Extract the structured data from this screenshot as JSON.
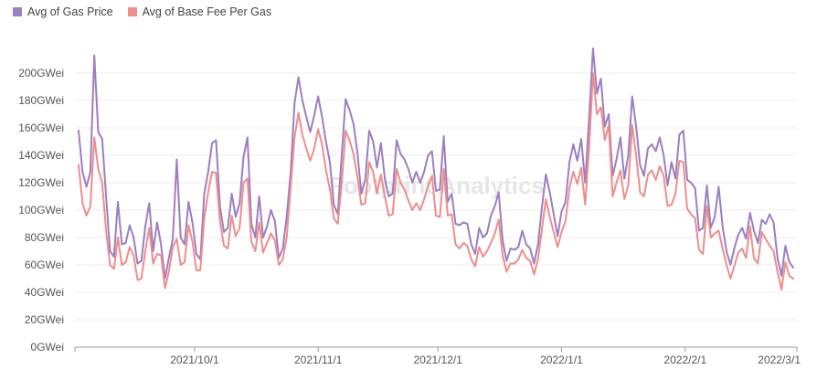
{
  "legend": {
    "gas": "Avg of Gas Price",
    "base": "Avg of Base Fee Per Gas"
  },
  "watermark": "Footprint Analytics",
  "colors": {
    "gas": "#9c7fc0",
    "base": "#ee8d8d",
    "grid": "#ececec",
    "axis": "#999999"
  },
  "chart_data": {
    "type": "line",
    "title": "",
    "xlabel": "",
    "ylabel": "",
    "grid": true,
    "legend_position": "top-left",
    "ylim": [
      0,
      200
    ],
    "y_ticks": [
      0,
      20,
      40,
      60,
      80,
      100,
      120,
      140,
      160,
      180,
      200
    ],
    "y_tick_labels": [
      "0GWei",
      "20GWei",
      "40GWei",
      "60GWei",
      "80GWei",
      "100GWei",
      "120GWei",
      "140GWei",
      "160GWei",
      "180GWei",
      "200GWei"
    ],
    "x_start": "2021-09-01",
    "x_end": "2022-03-01",
    "x_ticks": [
      "2021-10-01",
      "2021-11-01",
      "2021-12-01",
      "2022-01-01",
      "2022-02-01",
      "2022-03-01"
    ],
    "x_tick_labels": [
      "2021/10/1",
      "2021/11/1",
      "2021/12/1",
      "2022/1/1",
      "2022/2/1",
      "2022/3/1"
    ],
    "series": [
      {
        "name": "Avg of Gas Price",
        "color": "#9c7fc0",
        "values": [
          158,
          128,
          117,
          128,
          213,
          157,
          152,
          110,
          70,
          66,
          106,
          75,
          76,
          89,
          80,
          61,
          63,
          88,
          105,
          70,
          91,
          75,
          50,
          65,
          79,
          137,
          80,
          75,
          106,
          91,
          68,
          64,
          112,
          128,
          149,
          151,
          103,
          84,
          87,
          112,
          95,
          105,
          139,
          153,
          90,
          80,
          110,
          80,
          88,
          100,
          92,
          65,
          72,
          95,
          127,
          178,
          197,
          180,
          168,
          157,
          169,
          183,
          168,
          150,
          135,
          104,
          97,
          140,
          181,
          173,
          163,
          142,
          112,
          122,
          158,
          150,
          131,
          149,
          123,
          110,
          112,
          151,
          141,
          137,
          130,
          120,
          128,
          120,
          128,
          140,
          143,
          114,
          115,
          154,
          106,
          112,
          90,
          89,
          91,
          90,
          75,
          68,
          87,
          80,
          83,
          96,
          103,
          113,
          78,
          63,
          72,
          71,
          73,
          85,
          75,
          72,
          61,
          75,
          102,
          126,
          113,
          97,
          81,
          99,
          106,
          135,
          148,
          136,
          152,
          120,
          167,
          218,
          185,
          196,
          161,
          170,
          125,
          137,
          153,
          123,
          140,
          183,
          161,
          133,
          125,
          145,
          148,
          143,
          153,
          140,
          118,
          135,
          123,
          155,
          158,
          122,
          120,
          116,
          85,
          87,
          118,
          87,
          95,
          117,
          88,
          70,
          60,
          72,
          82,
          87,
          79,
          98,
          85,
          76,
          93,
          90,
          97,
          91,
          65,
          52,
          74,
          62,
          58
        ],
        "display_values": []
      },
      {
        "name": "Avg of Base Fee Per Gas",
        "color": "#ee8d8d",
        "values": [
          133,
          105,
          96,
          103,
          153,
          130,
          120,
          85,
          60,
          57,
          80,
          60,
          62,
          73,
          67,
          49,
          50,
          70,
          87,
          61,
          68,
          67,
          43,
          55,
          73,
          79,
          60,
          62,
          89,
          77,
          56,
          56,
          94,
          113,
          128,
          127,
          92,
          74,
          72,
          96,
          81,
          87,
          120,
          123,
          77,
          70,
          91,
          69,
          76,
          83,
          78,
          60,
          64,
          80,
          116,
          153,
          171,
          155,
          145,
          136,
          145,
          159,
          148,
          129,
          115,
          94,
          90,
          119,
          158,
          151,
          141,
          124,
          104,
          105,
          135,
          128,
          112,
          126,
          110,
          96,
          97,
          130,
          120,
          115,
          107,
          100,
          105,
          100,
          108,
          118,
          125,
          96,
          95,
          130,
          96,
          97,
          75,
          72,
          76,
          74,
          64,
          59,
          73,
          66,
          70,
          76,
          83,
          93,
          67,
          55,
          61,
          61,
          64,
          71,
          65,
          63,
          53,
          64,
          86,
          108,
          95,
          84,
          73,
          84,
          92,
          116,
          128,
          119,
          131,
          104,
          145,
          200,
          170,
          175,
          151,
          162,
          110,
          120,
          129,
          108,
          118,
          162,
          140,
          113,
          110,
          126,
          129,
          122,
          132,
          125,
          103,
          104,
          112,
          136,
          135,
          101,
          97,
          94,
          71,
          68,
          103,
          80,
          83,
          85,
          72,
          60,
          50,
          59,
          69,
          72,
          65,
          88,
          65,
          61,
          84,
          79,
          74,
          70,
          55,
          42,
          62,
          52,
          50
        ],
        "display_values": []
      }
    ]
  }
}
